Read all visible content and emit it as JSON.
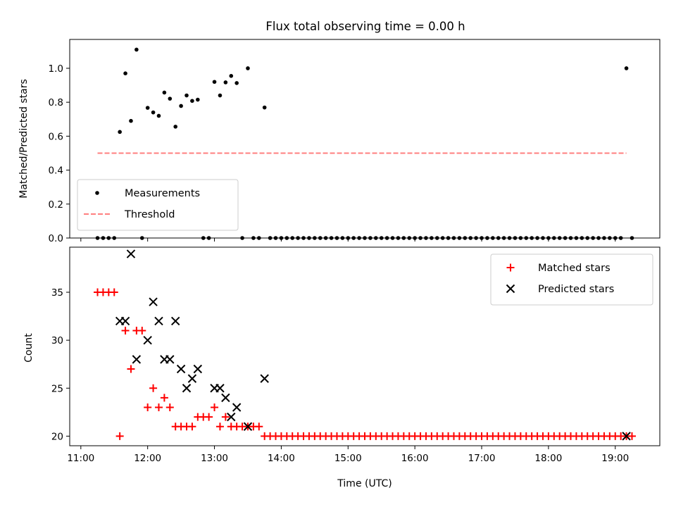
{
  "chart_data": [
    {
      "type": "scatter",
      "title": "Flux total observing time = 0.00 h",
      "ylabel": "Matched/Predicted stars",
      "xlabel": "",
      "xlim": [
        "10:50",
        "19:40"
      ],
      "ylim": [
        0,
        1.17
      ],
      "yticks": [
        "0.0",
        "0.2",
        "0.4",
        "0.6",
        "0.8",
        "1.0"
      ],
      "legend_position": "lower-left",
      "grid": false,
      "series": [
        {
          "name": "Measurements",
          "marker": "dot",
          "color": "#000000",
          "points": [
            [
              "11:15",
              0
            ],
            [
              "11:20",
              0
            ],
            [
              "11:25",
              0
            ],
            [
              "11:30",
              0
            ],
            [
              "11:35",
              0.625
            ],
            [
              "11:40",
              0.97
            ],
            [
              "11:45",
              0.69
            ],
            [
              "11:50",
              1.11
            ],
            [
              "11:55",
              0
            ],
            [
              "12:00",
              0.767
            ],
            [
              "12:05",
              0.74
            ],
            [
              "12:10",
              0.72
            ],
            [
              "12:15",
              0.857
            ],
            [
              "12:20",
              0.821
            ],
            [
              "12:25",
              0.656
            ],
            [
              "12:30",
              0.778
            ],
            [
              "12:35",
              0.84
            ],
            [
              "12:40",
              0.808
            ],
            [
              "12:45",
              0.815
            ],
            [
              "12:50",
              0
            ],
            [
              "12:55",
              0
            ],
            [
              "13:00",
              0.92
            ],
            [
              "13:05",
              0.84
            ],
            [
              "13:10",
              0.917
            ],
            [
              "13:15",
              0.955
            ],
            [
              "13:20",
              0.913
            ],
            [
              "13:25",
              0
            ],
            [
              "13:30",
              1.0
            ],
            [
              "13:35",
              0
            ],
            [
              "13:40",
              0
            ],
            [
              "13:45",
              0.769
            ],
            [
              "13:50",
              0
            ],
            [
              "13:55",
              0
            ],
            [
              "14:00",
              0
            ],
            [
              "14:05",
              0
            ],
            [
              "14:10",
              0
            ],
            [
              "14:15",
              0
            ],
            [
              "14:20",
              0
            ],
            [
              "14:25",
              0
            ],
            [
              "14:30",
              0
            ],
            [
              "14:35",
              0
            ],
            [
              "14:40",
              0
            ],
            [
              "14:45",
              0
            ],
            [
              "14:50",
              0
            ],
            [
              "14:55",
              0
            ],
            [
              "15:00",
              0
            ],
            [
              "15:05",
              0
            ],
            [
              "15:10",
              0
            ],
            [
              "15:15",
              0
            ],
            [
              "15:20",
              0
            ],
            [
              "15:25",
              0
            ],
            [
              "15:30",
              0
            ],
            [
              "15:35",
              0
            ],
            [
              "15:40",
              0
            ],
            [
              "15:45",
              0
            ],
            [
              "15:50",
              0
            ],
            [
              "15:55",
              0
            ],
            [
              "16:00",
              0
            ],
            [
              "16:05",
              0
            ],
            [
              "16:10",
              0
            ],
            [
              "16:15",
              0
            ],
            [
              "16:20",
              0
            ],
            [
              "16:25",
              0
            ],
            [
              "16:30",
              0
            ],
            [
              "16:35",
              0
            ],
            [
              "16:40",
              0
            ],
            [
              "16:45",
              0
            ],
            [
              "16:50",
              0
            ],
            [
              "16:55",
              0
            ],
            [
              "17:00",
              0
            ],
            [
              "17:05",
              0
            ],
            [
              "17:10",
              0
            ],
            [
              "17:15",
              0
            ],
            [
              "17:20",
              0
            ],
            [
              "17:25",
              0
            ],
            [
              "17:30",
              0
            ],
            [
              "17:35",
              0
            ],
            [
              "17:40",
              0
            ],
            [
              "17:45",
              0
            ],
            [
              "17:50",
              0
            ],
            [
              "17:55",
              0
            ],
            [
              "18:00",
              0
            ],
            [
              "18:05",
              0
            ],
            [
              "18:10",
              0
            ],
            [
              "18:15",
              0
            ],
            [
              "18:20",
              0
            ],
            [
              "18:25",
              0
            ],
            [
              "18:30",
              0
            ],
            [
              "18:35",
              0
            ],
            [
              "18:40",
              0
            ],
            [
              "18:45",
              0
            ],
            [
              "18:50",
              0
            ],
            [
              "18:55",
              0
            ],
            [
              "19:00",
              0
            ],
            [
              "19:05",
              0
            ],
            [
              "19:10",
              1.0
            ],
            [
              "19:15",
              0
            ]
          ]
        },
        {
          "name": "Threshold",
          "type": "line",
          "style": "dashed",
          "color": "#ff7f7f",
          "points": [
            [
              "11:15",
              0.5
            ],
            [
              "19:10",
              0.5
            ]
          ]
        }
      ]
    },
    {
      "type": "scatter",
      "title": "",
      "ylabel": "Count",
      "xlabel": "Time (UTC)",
      "xlim": [
        "10:50",
        "19:40"
      ],
      "ylim": [
        19,
        39.7
      ],
      "yticks": [
        "20",
        "25",
        "30",
        "35"
      ],
      "xticks": [
        "11:00",
        "12:00",
        "13:00",
        "14:00",
        "15:00",
        "16:00",
        "17:00",
        "18:00",
        "19:00"
      ],
      "legend_position": "upper-right",
      "grid": false,
      "series": [
        {
          "name": "Matched stars",
          "marker": "plus",
          "color": "#ff0000",
          "points": [
            [
              "11:15",
              35
            ],
            [
              "11:20",
              35
            ],
            [
              "11:25",
              35
            ],
            [
              "11:30",
              35
            ],
            [
              "11:35",
              20
            ],
            [
              "11:40",
              31
            ],
            [
              "11:45",
              27
            ],
            [
              "11:50",
              31
            ],
            [
              "11:55",
              31
            ],
            [
              "12:00",
              23
            ],
            [
              "12:05",
              25
            ],
            [
              "12:10",
              23
            ],
            [
              "12:15",
              24
            ],
            [
              "12:20",
              23
            ],
            [
              "12:25",
              21
            ],
            [
              "12:30",
              21
            ],
            [
              "12:35",
              21
            ],
            [
              "12:40",
              21
            ],
            [
              "12:45",
              22
            ],
            [
              "12:50",
              22
            ],
            [
              "12:55",
              22
            ],
            [
              "13:00",
              23
            ],
            [
              "13:05",
              21
            ],
            [
              "13:10",
              22
            ],
            [
              "13:15",
              21
            ],
            [
              "13:20",
              21
            ],
            [
              "13:25",
              21
            ],
            [
              "13:30",
              21
            ],
            [
              "13:35",
              21
            ],
            [
              "13:40",
              21
            ],
            [
              "13:45",
              20
            ],
            [
              "13:50",
              20
            ],
            [
              "13:55",
              20
            ],
            [
              "14:00",
              20
            ],
            [
              "14:05",
              20
            ],
            [
              "14:10",
              20
            ],
            [
              "14:15",
              20
            ],
            [
              "14:20",
              20
            ],
            [
              "14:25",
              20
            ],
            [
              "14:30",
              20
            ],
            [
              "14:35",
              20
            ],
            [
              "14:40",
              20
            ],
            [
              "14:45",
              20
            ],
            [
              "14:50",
              20
            ],
            [
              "14:55",
              20
            ],
            [
              "15:00",
              20
            ],
            [
              "15:05",
              20
            ],
            [
              "15:10",
              20
            ],
            [
              "15:15",
              20
            ],
            [
              "15:20",
              20
            ],
            [
              "15:25",
              20
            ],
            [
              "15:30",
              20
            ],
            [
              "15:35",
              20
            ],
            [
              "15:40",
              20
            ],
            [
              "15:45",
              20
            ],
            [
              "15:50",
              20
            ],
            [
              "15:55",
              20
            ],
            [
              "16:00",
              20
            ],
            [
              "16:05",
              20
            ],
            [
              "16:10",
              20
            ],
            [
              "16:15",
              20
            ],
            [
              "16:20",
              20
            ],
            [
              "16:25",
              20
            ],
            [
              "16:30",
              20
            ],
            [
              "16:35",
              20
            ],
            [
              "16:40",
              20
            ],
            [
              "16:45",
              20
            ],
            [
              "16:50",
              20
            ],
            [
              "16:55",
              20
            ],
            [
              "17:00",
              20
            ],
            [
              "17:05",
              20
            ],
            [
              "17:10",
              20
            ],
            [
              "17:15",
              20
            ],
            [
              "17:20",
              20
            ],
            [
              "17:25",
              20
            ],
            [
              "17:30",
              20
            ],
            [
              "17:35",
              20
            ],
            [
              "17:40",
              20
            ],
            [
              "17:45",
              20
            ],
            [
              "17:50",
              20
            ],
            [
              "17:55",
              20
            ],
            [
              "18:00",
              20
            ],
            [
              "18:05",
              20
            ],
            [
              "18:10",
              20
            ],
            [
              "18:15",
              20
            ],
            [
              "18:20",
              20
            ],
            [
              "18:25",
              20
            ],
            [
              "18:30",
              20
            ],
            [
              "18:35",
              20
            ],
            [
              "18:40",
              20
            ],
            [
              "18:45",
              20
            ],
            [
              "18:50",
              20
            ],
            [
              "18:55",
              20
            ],
            [
              "19:00",
              20
            ],
            [
              "19:05",
              20
            ],
            [
              "19:10",
              20
            ],
            [
              "19:15",
              20
            ]
          ]
        },
        {
          "name": "Predicted stars",
          "marker": "x",
          "color": "#000000",
          "points": [
            [
              "11:35",
              32
            ],
            [
              "11:40",
              32
            ],
            [
              "11:45",
              39
            ],
            [
              "11:50",
              28
            ],
            [
              "12:00",
              30
            ],
            [
              "12:05",
              34
            ],
            [
              "12:10",
              32
            ],
            [
              "12:15",
              28
            ],
            [
              "12:20",
              28
            ],
            [
              "12:25",
              32
            ],
            [
              "12:30",
              27
            ],
            [
              "12:35",
              25
            ],
            [
              "12:40",
              26
            ],
            [
              "12:45",
              27
            ],
            [
              "13:00",
              25
            ],
            [
              "13:05",
              25
            ],
            [
              "13:10",
              24
            ],
            [
              "13:15",
              22
            ],
            [
              "13:20",
              23
            ],
            [
              "13:30",
              21
            ],
            [
              "13:45",
              26
            ],
            [
              "19:10",
              20
            ]
          ]
        }
      ]
    }
  ]
}
